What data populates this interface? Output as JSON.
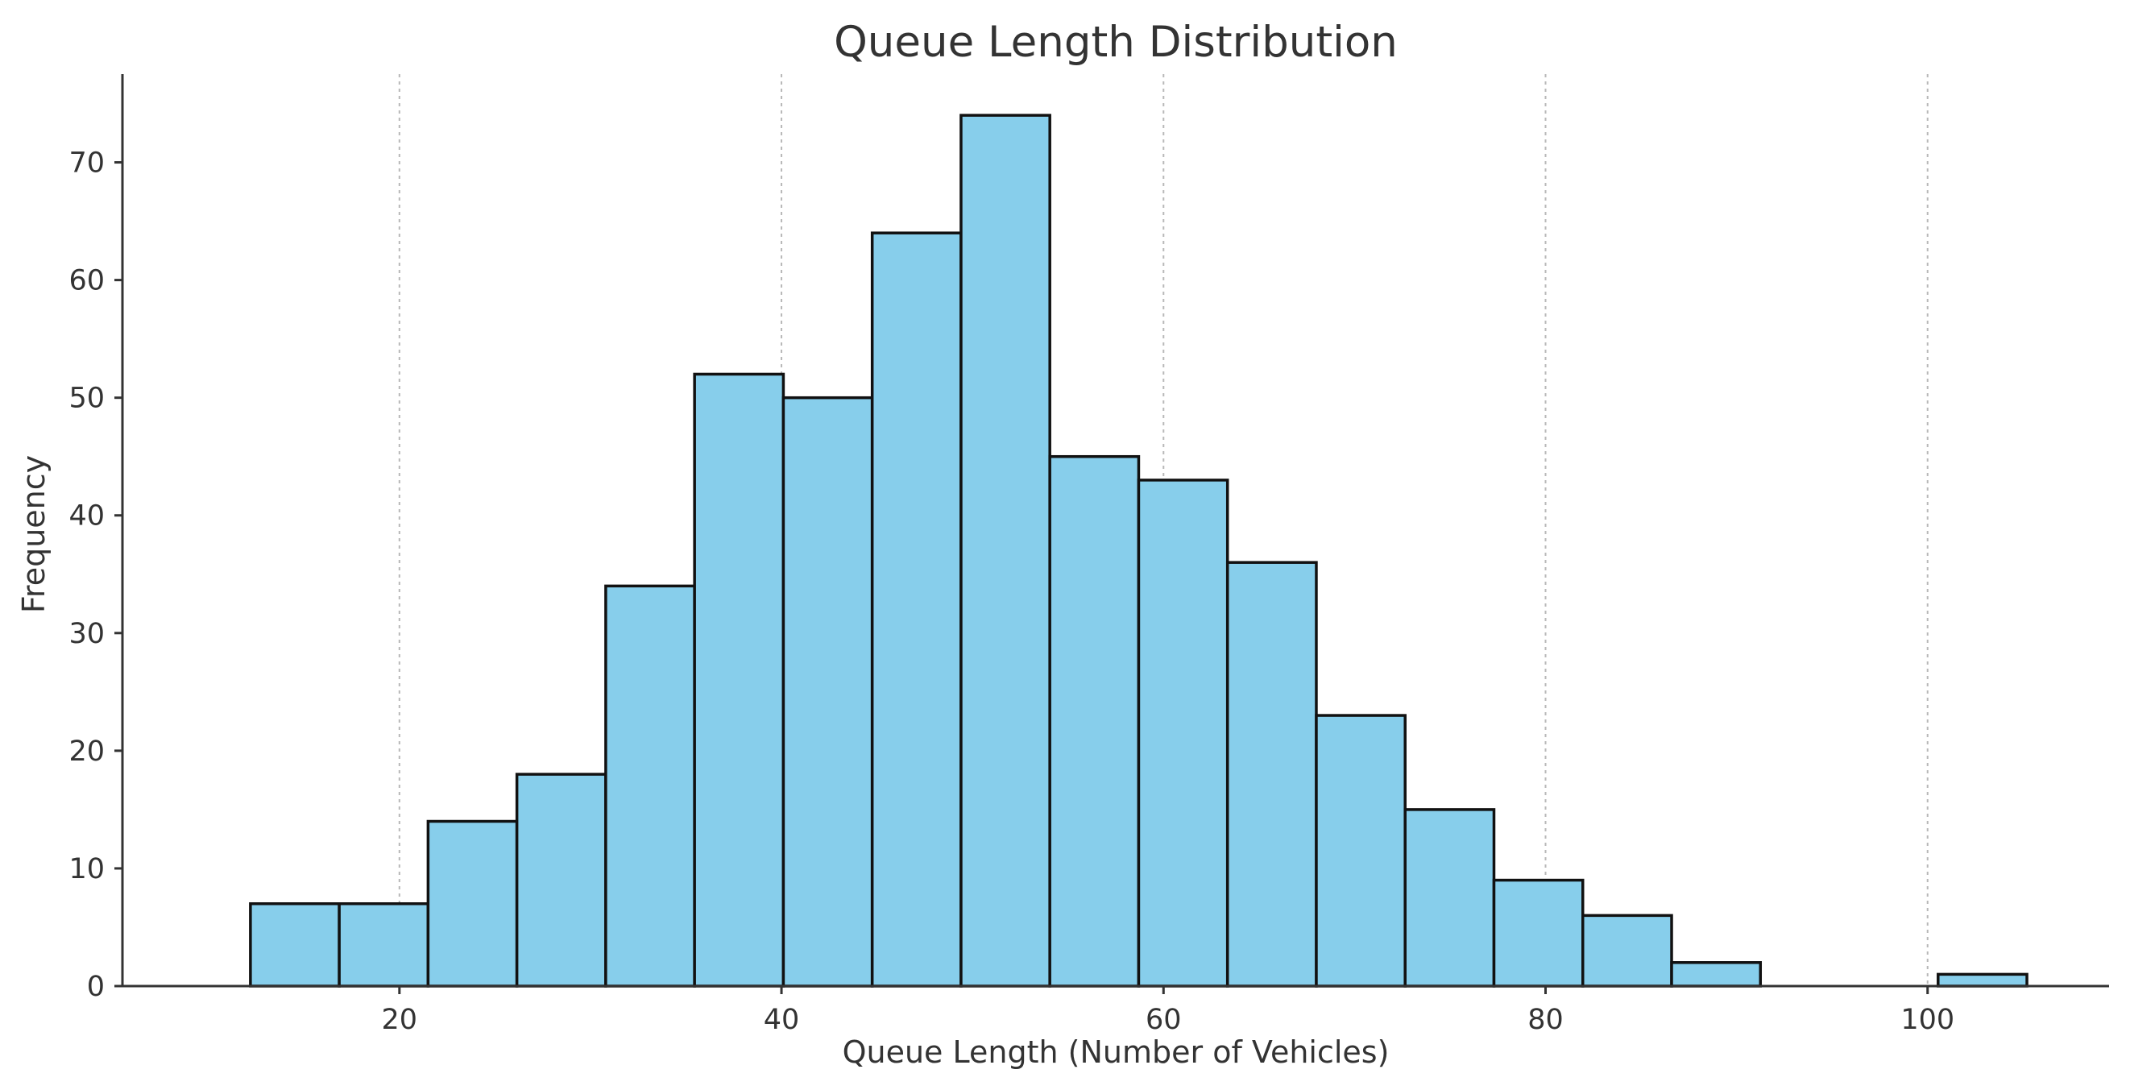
{
  "chart_data": {
    "type": "bar",
    "subtype": "histogram",
    "title": "Queue Length Distribution",
    "xlabel": "Queue Length (Number of Vehicles)",
    "ylabel": "Frequency",
    "xlim": [
      5.5,
      109.5
    ],
    "ylim": [
      0,
      77.5
    ],
    "x_ticks": [
      20,
      40,
      60,
      80,
      100
    ],
    "y_ticks": [
      0,
      10,
      20,
      30,
      40,
      50,
      60,
      70
    ],
    "grid": "vertical dashed",
    "bar_color": "#87CEEB",
    "edge_color": "#111111",
    "bins": [
      {
        "x0": 12.2,
        "x1": 16.85,
        "value": 7
      },
      {
        "x0": 16.85,
        "x1": 21.5,
        "value": 7
      },
      {
        "x0": 21.5,
        "x1": 26.15,
        "value": 14
      },
      {
        "x0": 26.15,
        "x1": 30.8,
        "value": 18
      },
      {
        "x0": 30.8,
        "x1": 35.45,
        "value": 34
      },
      {
        "x0": 35.45,
        "x1": 40.1,
        "value": 52
      },
      {
        "x0": 40.1,
        "x1": 44.75,
        "value": 50
      },
      {
        "x0": 44.75,
        "x1": 49.4,
        "value": 64
      },
      {
        "x0": 49.4,
        "x1": 54.05,
        "value": 74
      },
      {
        "x0": 54.05,
        "x1": 58.7,
        "value": 45
      },
      {
        "x0": 58.7,
        "x1": 63.35,
        "value": 43
      },
      {
        "x0": 63.35,
        "x1": 68.0,
        "value": 36
      },
      {
        "x0": 68.0,
        "x1": 72.65,
        "value": 23
      },
      {
        "x0": 72.65,
        "x1": 77.3,
        "value": 15
      },
      {
        "x0": 77.3,
        "x1": 81.95,
        "value": 9
      },
      {
        "x0": 81.95,
        "x1": 86.6,
        "value": 6
      },
      {
        "x0": 86.6,
        "x1": 91.25,
        "value": 2
      },
      {
        "x0": 91.25,
        "x1": 95.9,
        "value": 0
      },
      {
        "x0": 95.9,
        "x1": 100.55,
        "value": 0
      },
      {
        "x0": 100.55,
        "x1": 105.2,
        "value": 1
      }
    ]
  }
}
